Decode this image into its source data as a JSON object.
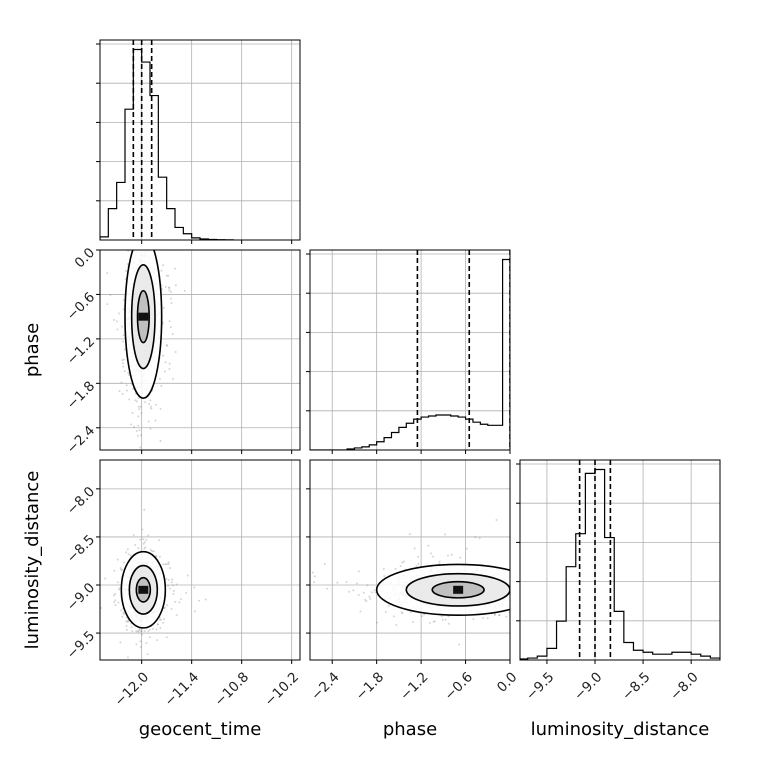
{
  "chart_data": {
    "type": "corner",
    "parameters": [
      "geocent_time",
      "phase",
      "luminosity_distance"
    ],
    "axis_labels": {
      "geocent_time": "geocent_time",
      "phase": "phase",
      "luminosity_distance": "luminosity_distance"
    },
    "ranges": {
      "geocent_time": [
        -12.5,
        -10.1
      ],
      "phase": [
        -2.7,
        0.0
      ],
      "luminosity_distance": [
        -9.78,
        -7.7
      ]
    },
    "ticks": {
      "geocent_time": {
        "values": [
          -12.0,
          -11.4,
          -10.8,
          -10.2
        ],
        "labels": [
          "−12.0",
          "−11.4",
          "−10.8",
          "−10.2"
        ]
      },
      "phase": {
        "values": [
          -2.4,
          -1.8,
          -1.2,
          -0.6,
          0.0
        ],
        "labels": [
          "−2.4",
          "−1.8",
          "−1.2",
          "−0.6",
          "0.0"
        ]
      },
      "luminosity_distance": {
        "values": [
          -9.5,
          -9.0,
          -8.5,
          -8.0
        ],
        "labels": [
          "−9.5",
          "−9.0",
          "−8.5",
          "−8.0"
        ]
      }
    },
    "quantiles": {
      "geocent_time": [
        -12.1,
        -12.0,
        -11.88
      ],
      "phase": [
        -1.25,
        -0.55,
        0.0
      ],
      "luminosity_distance": [
        -9.16,
        -9.0,
        -8.84
      ]
    },
    "histograms": {
      "geocent_time": {
        "edges": [
          -12.5,
          -12.4,
          -12.3,
          -12.2,
          -12.1,
          -12.0,
          -11.9,
          -11.8,
          -11.7,
          -11.6,
          -11.5,
          -11.4,
          -11.3,
          -11.2,
          -11.1,
          -11.0,
          -10.9
        ],
        "counts": [
          3,
          30,
          55,
          125,
          182,
          170,
          138,
          60,
          30,
          12,
          6,
          2,
          1,
          0.5,
          0.3,
          0.1
        ]
      },
      "phase": {
        "edges": [
          -2.7,
          -2.6,
          -2.5,
          -2.4,
          -2.3,
          -2.2,
          -2.1,
          -2.0,
          -1.9,
          -1.8,
          -1.7,
          -1.6,
          -1.5,
          -1.4,
          -1.3,
          -1.2,
          -1.1,
          -1.0,
          -0.9,
          -0.8,
          -0.7,
          -0.6,
          -0.5,
          -0.4,
          -0.3,
          -0.2,
          -0.1,
          0.0
        ],
        "counts": [
          0,
          0,
          0,
          0,
          0,
          1,
          2,
          3,
          5,
          8,
          12,
          17,
          22,
          26,
          30,
          32,
          33,
          34,
          34,
          33,
          32,
          30,
          27,
          25,
          24,
          24,
          185
        ]
      },
      "luminosity_distance": {
        "edges": [
          -9.78,
          -9.7,
          -9.6,
          -9.5,
          -9.4,
          -9.3,
          -9.2,
          -9.1,
          -9.0,
          -8.9,
          -8.8,
          -8.7,
          -8.6,
          -8.5,
          -8.4,
          -8.3,
          -8.2,
          -8.1,
          -8.0,
          -7.9,
          -7.8,
          -7.7
        ],
        "counts": [
          0.5,
          1,
          2,
          6,
          20,
          48,
          65,
          96,
          98,
          63,
          25,
          9,
          5,
          4,
          3,
          3,
          4,
          4,
          3,
          2,
          1
        ]
      }
    },
    "pairs": [
      {
        "x": "geocent_time",
        "y": "phase",
        "center": [
          -11.98,
          -0.9
        ],
        "spread": [
          0.1,
          0.5
        ]
      },
      {
        "x": "geocent_time",
        "y": "luminosity_distance",
        "center": [
          -11.98,
          -9.05
        ],
        "spread": [
          0.12,
          0.18
        ]
      },
      {
        "x": "phase",
        "y": "luminosity_distance",
        "center": [
          -0.7,
          -9.05
        ],
        "spread": [
          0.5,
          0.12
        ]
      }
    ],
    "contour_levels": 3,
    "grid": true
  }
}
